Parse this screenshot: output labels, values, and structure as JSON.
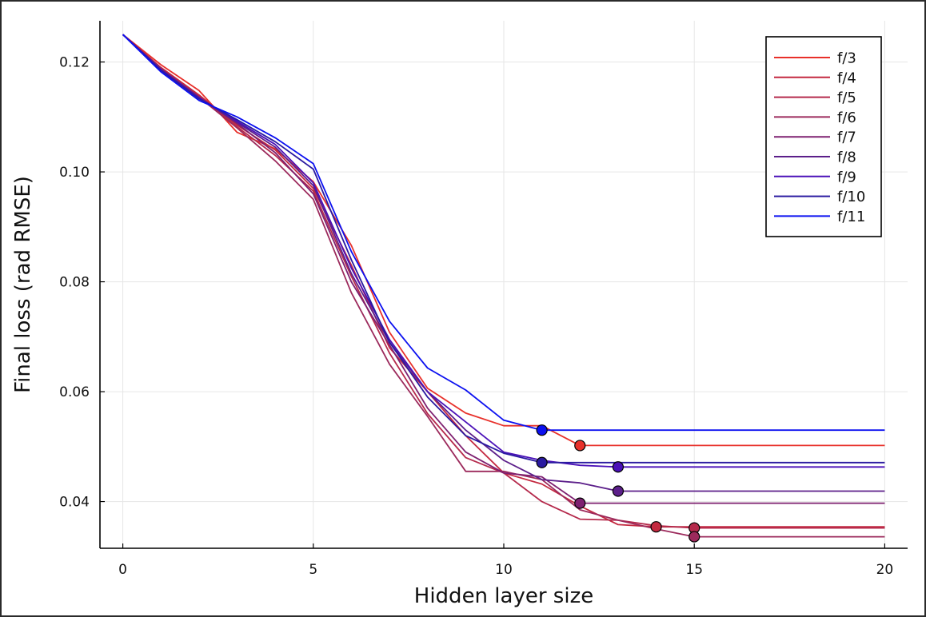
{
  "chart_data": {
    "type": "line",
    "title": "",
    "xlabel": "Hidden layer size",
    "ylabel": "Final loss (rad RMSE)",
    "xlim": [
      -0.6,
      20.6
    ],
    "ylim": [
      0.0315,
      0.1275
    ],
    "x_ticks": [
      0,
      5,
      10,
      15,
      20
    ],
    "x_tick_labels": [
      "0",
      "5",
      "10",
      "15",
      "20"
    ],
    "y_ticks": [
      0.04,
      0.06,
      0.08,
      0.1,
      0.12
    ],
    "y_tick_labels": [
      "0.04",
      "0.06",
      "0.08",
      "0.10",
      "0.12"
    ],
    "grid": true,
    "legend_position": "top-right",
    "x": [
      0,
      1,
      2,
      3,
      4,
      5,
      6,
      7,
      8,
      9,
      10,
      11,
      12,
      13,
      14,
      15,
      16,
      17,
      18,
      19,
      20
    ],
    "series": [
      {
        "name": "f/3",
        "color": "#e8302a",
        "values": [
          0.125,
          0.1195,
          0.1148,
          0.1072,
          0.1042,
          0.0982,
          0.0866,
          0.0708,
          0.0606,
          0.0561,
          0.0538,
          0.0538,
          0.0502,
          0.0502,
          0.0502,
          0.0502,
          0.0502,
          0.0502,
          0.0502,
          0.0502,
          0.0502
        ],
        "min_x": 12,
        "min_y": 0.0502
      },
      {
        "name": "f/4",
        "color": "#c42940",
        "values": [
          0.125,
          0.119,
          0.114,
          0.1085,
          0.104,
          0.097,
          0.083,
          0.068,
          0.06,
          0.052,
          0.0452,
          0.0432,
          0.0392,
          0.0358,
          0.0354,
          0.0354,
          0.0354,
          0.0354,
          0.0354,
          0.0354,
          0.0354
        ],
        "min_x": 14,
        "min_y": 0.0354
      },
      {
        "name": "f/5",
        "color": "#b52a4c",
        "values": [
          0.125,
          0.1188,
          0.1138,
          0.1082,
          0.103,
          0.0965,
          0.081,
          0.067,
          0.056,
          0.048,
          0.0452,
          0.04,
          0.0368,
          0.0366,
          0.0356,
          0.0352,
          0.0352,
          0.0352,
          0.0352,
          0.0352,
          0.0352
        ],
        "min_x": 15,
        "min_y": 0.0352
      },
      {
        "name": "f/6",
        "color": "#9c2a5c",
        "values": [
          0.125,
          0.1186,
          0.1136,
          0.108,
          0.102,
          0.095,
          0.078,
          0.065,
          0.0555,
          0.0455,
          0.0455,
          0.044,
          0.0385,
          0.0366,
          0.035,
          0.0336,
          0.0336,
          0.0336,
          0.0336,
          0.0336,
          0.0336
        ],
        "min_x": 15,
        "min_y": 0.0336
      },
      {
        "name": "f/7",
        "color": "#7e2070",
        "values": [
          0.125,
          0.1188,
          0.1136,
          0.1088,
          0.1035,
          0.096,
          0.08,
          0.0685,
          0.057,
          0.049,
          0.0452,
          0.0445,
          0.0397,
          0.0397,
          0.0397,
          0.0397,
          0.0397,
          0.0397,
          0.0397,
          0.0397,
          0.0397
        ],
        "min_x": 12,
        "min_y": 0.0397
      },
      {
        "name": "f/8",
        "color": "#5c1f8a",
        "values": [
          0.125,
          0.1186,
          0.1135,
          0.109,
          0.1045,
          0.0975,
          0.0815,
          0.069,
          0.06,
          0.053,
          0.0475,
          0.044,
          0.0434,
          0.0419,
          0.0419,
          0.0419,
          0.0419,
          0.0419,
          0.0419,
          0.0419,
          0.0419
        ],
        "min_x": 13,
        "min_y": 0.0419
      },
      {
        "name": "f/9",
        "color": "#4a10b8",
        "values": [
          0.125,
          0.1186,
          0.1135,
          0.1092,
          0.105,
          0.098,
          0.0825,
          0.0695,
          0.06,
          0.0545,
          0.049,
          0.0475,
          0.0466,
          0.0463,
          0.0463,
          0.0463,
          0.0463,
          0.0463,
          0.0463,
          0.0463,
          0.0463
        ],
        "min_x": 13,
        "min_y": 0.0463
      },
      {
        "name": "f/10",
        "color": "#2a1aa0",
        "values": [
          0.125,
          0.1185,
          0.1133,
          0.1095,
          0.1055,
          0.1005,
          0.084,
          0.069,
          0.059,
          0.052,
          0.0488,
          0.0471,
          0.0471,
          0.0471,
          0.0471,
          0.0471,
          0.0471,
          0.0471,
          0.0471,
          0.0471,
          0.0471
        ],
        "min_x": 11,
        "min_y": 0.0471
      },
      {
        "name": "f/11",
        "color": "#0b10f0",
        "values": [
          0.125,
          0.1182,
          0.113,
          0.11,
          0.1062,
          0.1015,
          0.0855,
          0.0728,
          0.0643,
          0.0603,
          0.0548,
          0.053,
          0.053,
          0.053,
          0.053,
          0.053,
          0.053,
          0.053,
          0.053,
          0.053,
          0.053
        ],
        "min_x": 11,
        "min_y": 0.053
      }
    ]
  }
}
